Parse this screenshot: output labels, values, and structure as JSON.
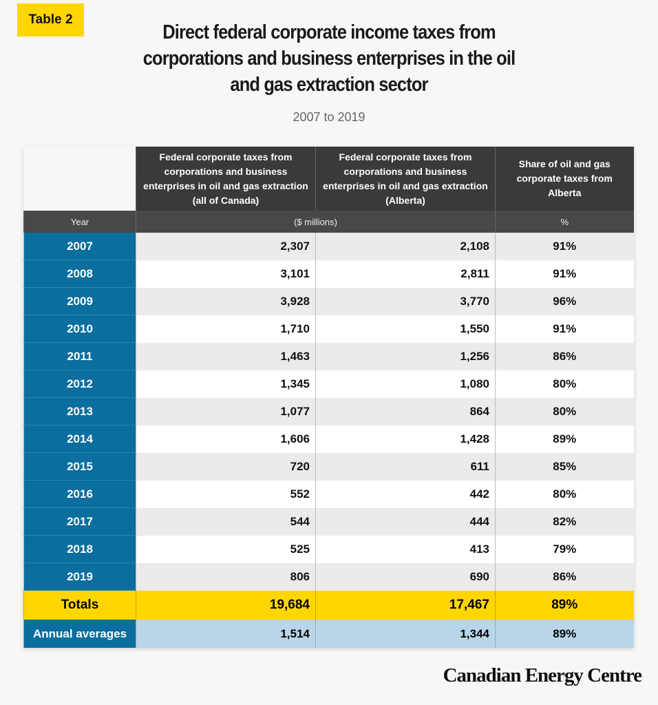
{
  "badge": "Table 2",
  "title": "Direct federal corporate income taxes from corporations and business enterprises in the oil and gas extraction sector",
  "subtitle": "2007 to 2019",
  "chart_data": {
    "type": "table",
    "columns": [
      "Federal corporate taxes from corporations and business enterprises in oil and gas extraction (all of Canada)",
      "Federal corporate taxes from corporations and business enterprises in oil and gas extraction (Alberta)",
      "Share of oil and gas corporate taxes from Alberta"
    ],
    "units": {
      "year_label": "Year",
      "money": "($ millions)",
      "pct": "%"
    },
    "rows": [
      {
        "year": "2007",
        "canada": "2,307",
        "alberta": "2,108",
        "share": "91%"
      },
      {
        "year": "2008",
        "canada": "3,101",
        "alberta": "2,811",
        "share": "91%"
      },
      {
        "year": "2009",
        "canada": "3,928",
        "alberta": "3,770",
        "share": "96%"
      },
      {
        "year": "2010",
        "canada": "1,710",
        "alberta": "1,550",
        "share": "91%"
      },
      {
        "year": "2011",
        "canada": "1,463",
        "alberta": "1,256",
        "share": "86%"
      },
      {
        "year": "2012",
        "canada": "1,345",
        "alberta": "1,080",
        "share": "80%"
      },
      {
        "year": "2013",
        "canada": "1,077",
        "alberta": "864",
        "share": "80%"
      },
      {
        "year": "2014",
        "canada": "1,606",
        "alberta": "1,428",
        "share": "89%"
      },
      {
        "year": "2015",
        "canada": "720",
        "alberta": "611",
        "share": "85%"
      },
      {
        "year": "2016",
        "canada": "552",
        "alberta": "442",
        "share": "80%"
      },
      {
        "year": "2017",
        "canada": "544",
        "alberta": "444",
        "share": "82%"
      },
      {
        "year": "2018",
        "canada": "525",
        "alberta": "413",
        "share": "79%"
      },
      {
        "year": "2019",
        "canada": "806",
        "alberta": "690",
        "share": "86%"
      }
    ],
    "totals": {
      "label": "Totals",
      "canada": "19,684",
      "alberta": "17,467",
      "share": "89%"
    },
    "averages": {
      "label": "Annual averages",
      "canada": "1,514",
      "alberta": "1,344",
      "share": "89%"
    }
  },
  "colors": {
    "yellow": "#ffd600",
    "blue": "#0a6e9e",
    "light_blue": "#b9d5e8",
    "header": "#3a3a3c"
  },
  "logo": "Canadian Energy Centre"
}
